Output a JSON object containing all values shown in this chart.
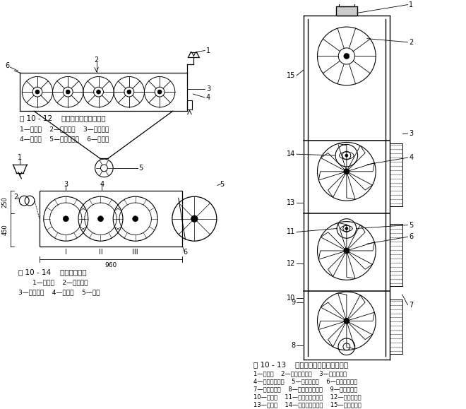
{
  "fig_width": 6.6,
  "fig_height": 5.79,
  "bg_color": "#ffffff",
  "line_color": "#000000",
  "fig12_title": "图 10 - 12    五辊钉齿滚筒清理机图",
  "fig12_caption1": "1—进料斗    2—钉齿滚筒    3—格条匠底",
  "fig12_caption2": "4—出料口    5—螺旋输送器    6—导向板",
  "fig13_title": "图 10 - 13    三层式螺旋钉齿滚筒清理机",
  "fig13_caption1": "1—进料口    2—螺旋钉齿滚筒    3—上层出料口",
  "fig13_caption2": "4—中层扇条滚筒    5—中层出料口    6—下层扇条滚筒",
  "fig13_caption3": "7—下层出料口    8—下层螺旋输送器    9—下层排杂网",
  "fig13_caption4": "10—排杂口    11—中层螺旋输送器    12—中层排杂网",
  "fig13_caption5": "13—排杂口    14—上层螺旋输送器    15—上层排杂网",
  "fig14_title": "图 10 - 14    开不孕子机图",
  "fig14_caption1": "1—喂料口    2—喂料罗拉",
  "fig14_caption2": "3—齿条滚筒    4—挡风板    5—尘笼"
}
